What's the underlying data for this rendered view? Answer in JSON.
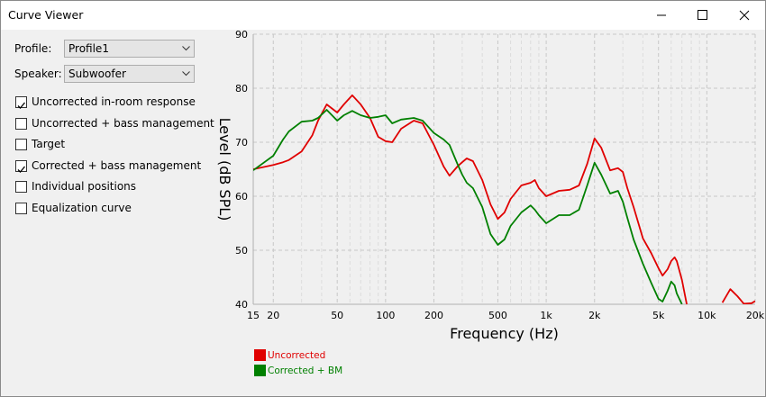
{
  "window": {
    "title": "Curve Viewer"
  },
  "controls": {
    "profile": {
      "label": "Profile:",
      "value": "Profile1"
    },
    "speaker": {
      "label": "Speaker:",
      "value": "Subwoofer"
    },
    "checkboxes": [
      {
        "label": "Uncorrected in-room response",
        "checked": true
      },
      {
        "label": "Uncorrected + bass management",
        "checked": false
      },
      {
        "label": "Target",
        "checked": false
      },
      {
        "label": "Corrected + bass management",
        "checked": true
      },
      {
        "label": "Individual positions",
        "checked": false
      },
      {
        "label": "Equalization curve",
        "checked": false
      }
    ]
  },
  "chart_data": {
    "type": "line",
    "x_label": "Frequency (Hz)",
    "y_label": "Level (dB SPL)",
    "log_x": true,
    "grid": true,
    "xlim": [
      15,
      20000
    ],
    "ylim": [
      40,
      90
    ],
    "xticks": [
      15,
      20,
      50,
      100,
      200,
      500,
      {
        "value": 1000,
        "label": "1k"
      },
      {
        "value": 2000,
        "label": "2k"
      },
      {
        "value": 5000,
        "label": "5k"
      },
      {
        "value": 10000,
        "label": "10k"
      },
      {
        "value": 20000,
        "label": "20k"
      }
    ],
    "xticks_minor": [
      30,
      40,
      60,
      70,
      80,
      90,
      300,
      400,
      600,
      700,
      800,
      900,
      3000,
      4000,
      6000,
      7000,
      8000,
      9000
    ],
    "yticks": [
      40,
      50,
      60,
      70,
      80,
      90
    ],
    "x": [
      15,
      20,
      23,
      25,
      30,
      35,
      38,
      43,
      50,
      55,
      62,
      70,
      80,
      90,
      100,
      110,
      125,
      150,
      170,
      200,
      230,
      250,
      280,
      300,
      320,
      350,
      400,
      450,
      500,
      550,
      600,
      700,
      800,
      850,
      900,
      1000,
      1200,
      1400,
      1600,
      1800,
      2000,
      2200,
      2500,
      2800,
      3000,
      3200,
      3500,
      4000,
      4500,
      5000,
      5300,
      5700,
      6000,
      6300,
      6500,
      7000,
      7500,
      10000,
      12500,
      14000,
      15500,
      17000,
      19000,
      20000
    ],
    "series": [
      {
        "name": "Uncorrected",
        "color": "#e00000",
        "values": [
          65,
          65.8,
          66.3,
          66.7,
          68.3,
          71.3,
          74,
          77,
          75.5,
          77,
          78.7,
          77,
          74.5,
          71,
          70.2,
          70,
          72.5,
          74,
          73.5,
          69.5,
          65.5,
          63.8,
          65.5,
          66.3,
          67,
          66.5,
          63,
          58.5,
          55.8,
          57,
          59.5,
          62,
          62.5,
          63,
          61.5,
          60,
          61,
          61.2,
          62,
          66,
          70.7,
          69,
          64.8,
          65.2,
          64.5,
          61.5,
          58,
          52.2,
          49.5,
          46.7,
          45.3,
          46.5,
          48,
          48.7,
          48,
          44.5,
          40,
          null,
          40.3,
          42.8,
          41.5,
          40.1,
          40.2,
          40.6
        ]
      },
      {
        "name": "Corrected + BM",
        "color": "#008000",
        "values": [
          64.8,
          67.5,
          70.5,
          72,
          73.8,
          74,
          74.5,
          76,
          74,
          75,
          75.8,
          75,
          74.5,
          74.7,
          75,
          73.5,
          74.2,
          74.5,
          74,
          71.7,
          70.5,
          69.5,
          66,
          64,
          62.5,
          61.5,
          58,
          53,
          51,
          52,
          54.5,
          57,
          58.3,
          57.5,
          56.5,
          55,
          56.5,
          56.5,
          57.5,
          62,
          66.2,
          64,
          60.5,
          61,
          59,
          56,
          52,
          47.5,
          44,
          41,
          40.5,
          42.5,
          44.2,
          43.5,
          42,
          40,
          null,
          null,
          null,
          null,
          null,
          null,
          null,
          null
        ]
      }
    ]
  }
}
